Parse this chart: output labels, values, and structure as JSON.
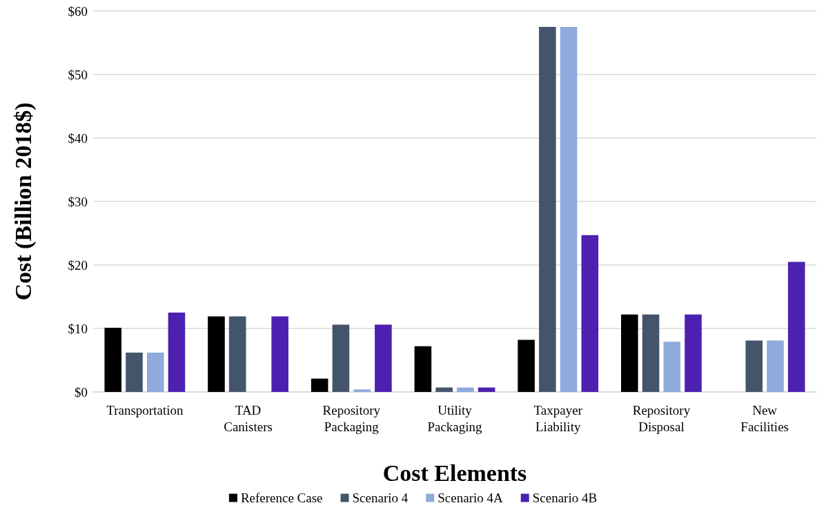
{
  "chart_data": {
    "type": "bar",
    "xlabel": "Cost Elements",
    "ylabel": "Cost (Billion 2018$)",
    "categories": [
      "Transportation",
      "TAD\nCanisters",
      "Repository\nPackaging",
      "Utility\nPackaging",
      "Taxpayer\nLiability",
      "Repository\nDisposal",
      "New\nFacilities"
    ],
    "series": [
      {
        "name": "Reference Case",
        "color": "#000000",
        "values": [
          10.1,
          11.9,
          2.1,
          7.2,
          8.2,
          12.2,
          null
        ]
      },
      {
        "name": "Scenario 4",
        "color": "#44546a",
        "values": [
          6.2,
          11.9,
          10.6,
          0.7,
          57.5,
          12.2,
          8.1
        ]
      },
      {
        "name": "Scenario 4A",
        "color": "#8faadc",
        "values": [
          6.2,
          null,
          0.4,
          0.7,
          57.5,
          7.9,
          8.1
        ]
      },
      {
        "name": "Scenario 4B",
        "color": "#4c21b0",
        "values": [
          12.5,
          11.9,
          10.6,
          0.7,
          24.7,
          12.2,
          20.5
        ]
      }
    ],
    "ylim": [
      0,
      60
    ],
    "yticks": [
      {
        "value": 0,
        "label": "$0"
      },
      {
        "value": 10,
        "label": "$10"
      },
      {
        "value": 20,
        "label": "$20"
      },
      {
        "value": 30,
        "label": "$30"
      },
      {
        "value": 40,
        "label": "$40"
      },
      {
        "value": 50,
        "label": "$50"
      },
      {
        "value": 60,
        "label": "$60"
      }
    ],
    "grid": "y",
    "legend": "bottom"
  }
}
